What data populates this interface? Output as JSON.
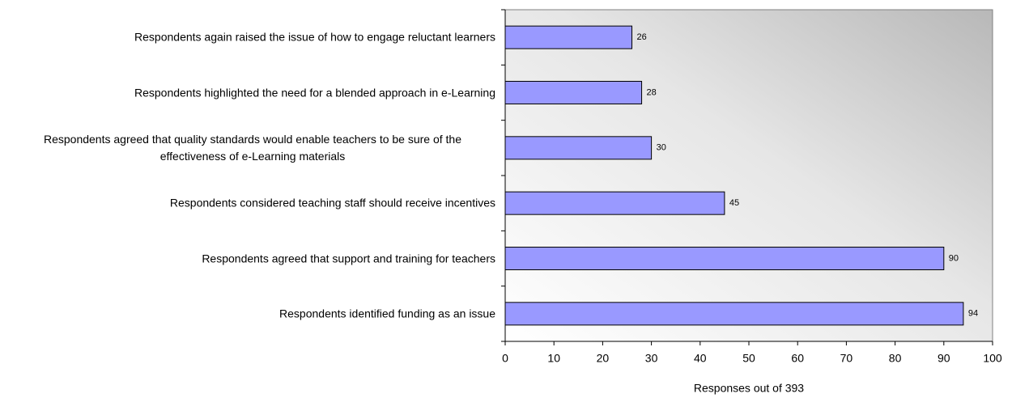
{
  "chart_data": {
    "type": "bar",
    "orientation": "horizontal",
    "categories": [
      "Respondents again raised the issue of how to engage reluctant learners",
      "Respondents highlighted the need for a blended approach in e-Learning",
      "Respondents agreed that quality standards would enable teachers to be sure of the effectiveness of e-Learning materials",
      "Respondents considered teaching staff should receive incentives",
      "Respondents agreed that support and training for teachers",
      "Respondents identified funding as an issue"
    ],
    "values": [
      26,
      28,
      30,
      45,
      90,
      94
    ],
    "color": "#9999ff",
    "xlabel": "Responses out of 393",
    "xlim": [
      0,
      100
    ],
    "xticks": [
      0,
      10,
      20,
      30,
      40,
      50,
      60,
      70,
      80,
      90,
      100
    ],
    "data_labels": true
  }
}
